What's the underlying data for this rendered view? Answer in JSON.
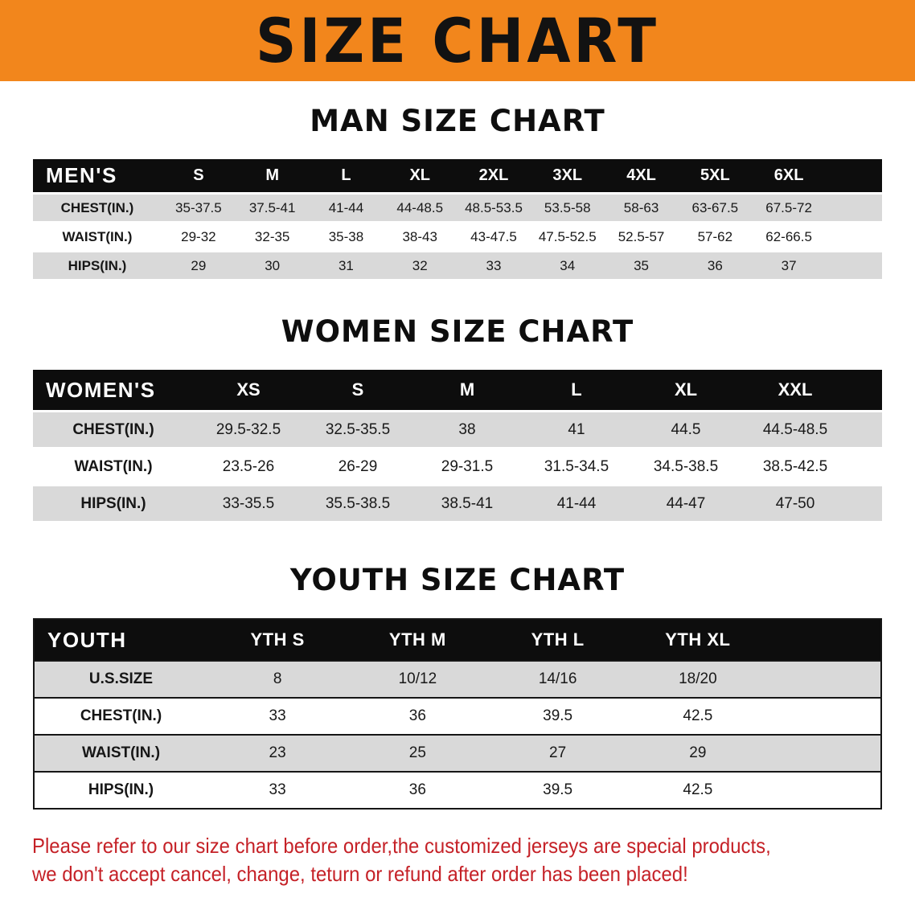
{
  "banner": {
    "title": "SIZE CHART",
    "bg_color": "#f2861c"
  },
  "sections": [
    {
      "id": "men",
      "heading": "MAN SIZE CHART",
      "table": {
        "corner_label": "MEN'S",
        "columns": [
          "S",
          "M",
          "L",
          "XL",
          "2XL",
          "3XL",
          "4XL",
          "5XL",
          "6XL"
        ],
        "rows": [
          {
            "label": "CHEST(IN.)",
            "values": [
              "35-37.5",
              "37.5-41",
              "41-44",
              "44-48.5",
              "48.5-53.5",
              "53.5-58",
              "58-63",
              "63-67.5",
              "67.5-72"
            ]
          },
          {
            "label": "WAIST(IN.)",
            "values": [
              "29-32",
              "32-35",
              "35-38",
              "38-43",
              "43-47.5",
              "47.5-52.5",
              "52.5-57",
              "57-62",
              "62-66.5"
            ]
          },
          {
            "label": "HIPS(IN.)",
            "values": [
              "29",
              "30",
              "31",
              "32",
              "33",
              "34",
              "35",
              "36",
              "37"
            ]
          }
        ]
      }
    },
    {
      "id": "women",
      "heading": "WOMEN SIZE CHART",
      "table": {
        "corner_label": "WOMEN'S",
        "columns": [
          "XS",
          "S",
          "M",
          "L",
          "XL",
          "XXL"
        ],
        "rows": [
          {
            "label": "CHEST(IN.)",
            "values": [
              "29.5-32.5",
              "32.5-35.5",
              "38",
              "41",
              "44.5",
              "44.5-48.5"
            ]
          },
          {
            "label": "WAIST(IN.)",
            "values": [
              "23.5-26",
              "26-29",
              "29-31.5",
              "31.5-34.5",
              "34.5-38.5",
              "38.5-42.5"
            ]
          },
          {
            "label": "HIPS(IN.)",
            "values": [
              "33-35.5",
              "35.5-38.5",
              "38.5-41",
              "41-44",
              "44-47",
              "47-50"
            ]
          }
        ]
      }
    },
    {
      "id": "youth",
      "heading": "YOUTH SIZE CHART",
      "table": {
        "corner_label": "YOUTH",
        "columns": [
          "YTH S",
          "YTH M",
          "YTH L",
          "YTH XL"
        ],
        "rows": [
          {
            "label": "U.S.SIZE",
            "values": [
              "8",
              "10/12",
              "14/16",
              "18/20"
            ]
          },
          {
            "label": "CHEST(IN.)",
            "values": [
              "33",
              "36",
              "39.5",
              "42.5"
            ]
          },
          {
            "label": "WAIST(IN.)",
            "values": [
              "23",
              "25",
              "27",
              "29"
            ]
          },
          {
            "label": "HIPS(IN.)",
            "values": [
              "33",
              "36",
              "39.5",
              "42.5"
            ]
          }
        ]
      }
    }
  ],
  "disclaimer": {
    "color": "#c52127",
    "lines": [
      "Please refer to our size chart before order,the customized jerseys are special products,",
      "we don't accept cancel, change, teturn or refund after order has been placed!"
    ]
  }
}
